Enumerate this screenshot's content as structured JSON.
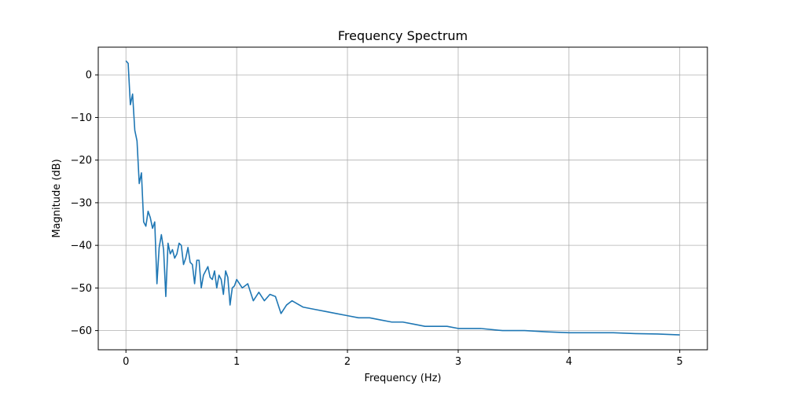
{
  "chart_data": {
    "type": "line",
    "title": "Frequency Spectrum",
    "xlabel": "Frequency (Hz)",
    "ylabel": "Magnitude (dB)",
    "xlim": [
      -0.25,
      5.25
    ],
    "ylim": [
      -64.5,
      6.5
    ],
    "xticks": [
      0,
      1,
      2,
      3,
      4,
      5
    ],
    "yticks": [
      0,
      -10,
      -20,
      -30,
      -40,
      -50,
      -60
    ],
    "xtick_labels": [
      "0",
      "1",
      "2",
      "3",
      "4",
      "5"
    ],
    "ytick_labels": [
      "0",
      "−10",
      "−20",
      "−30",
      "−40",
      "−50",
      "−60"
    ],
    "grid": true,
    "series": [
      {
        "color": "#1f77b4",
        "x": [
          0.0,
          0.02,
          0.04,
          0.06,
          0.08,
          0.1,
          0.12,
          0.14,
          0.16,
          0.18,
          0.2,
          0.22,
          0.24,
          0.26,
          0.28,
          0.3,
          0.32,
          0.34,
          0.36,
          0.38,
          0.4,
          0.42,
          0.44,
          0.46,
          0.48,
          0.5,
          0.52,
          0.54,
          0.56,
          0.58,
          0.6,
          0.62,
          0.64,
          0.66,
          0.68,
          0.7,
          0.72,
          0.74,
          0.76,
          0.78,
          0.8,
          0.82,
          0.84,
          0.86,
          0.88,
          0.9,
          0.92,
          0.94,
          0.96,
          0.98,
          1.0,
          1.05,
          1.1,
          1.15,
          1.2,
          1.25,
          1.3,
          1.35,
          1.4,
          1.45,
          1.5,
          1.6,
          1.7,
          1.8,
          1.9,
          2.0,
          2.1,
          2.2,
          2.3,
          2.4,
          2.5,
          2.6,
          2.7,
          2.8,
          2.9,
          3.0,
          3.2,
          3.4,
          3.6,
          3.8,
          4.0,
          4.2,
          4.4,
          4.6,
          4.8,
          5.0
        ],
        "y": [
          3.3,
          2.7,
          -7.0,
          -4.5,
          -13.0,
          -15.5,
          -25.5,
          -23.0,
          -34.5,
          -35.5,
          -32.0,
          -33.5,
          -36.0,
          -34.5,
          -49.0,
          -40.5,
          -37.5,
          -41.0,
          -52.0,
          -39.5,
          -42.0,
          -41.0,
          -43.0,
          -42.0,
          -39.5,
          -40.0,
          -44.5,
          -43.0,
          -40.5,
          -44.0,
          -44.5,
          -49.0,
          -43.5,
          -43.5,
          -50.0,
          -47.0,
          -46.0,
          -45.0,
          -47.5,
          -48.0,
          -46.0,
          -50.0,
          -47.0,
          -48.0,
          -51.5,
          -46.0,
          -47.5,
          -54.0,
          -50.0,
          -49.5,
          -48.0,
          -50.0,
          -49.0,
          -53.0,
          -51.0,
          -53.0,
          -51.5,
          -52.0,
          -56.0,
          -54.0,
          -53.0,
          -54.5,
          -55.0,
          -55.5,
          -56.0,
          -56.5,
          -57.0,
          -57.0,
          -57.5,
          -58.0,
          -58.0,
          -58.5,
          -59.0,
          -59.0,
          -59.0,
          -59.5,
          -59.5,
          -60.0,
          -60.0,
          -60.3,
          -60.5,
          -60.5,
          -60.5,
          -60.7,
          -60.8,
          -61.0
        ]
      }
    ]
  }
}
